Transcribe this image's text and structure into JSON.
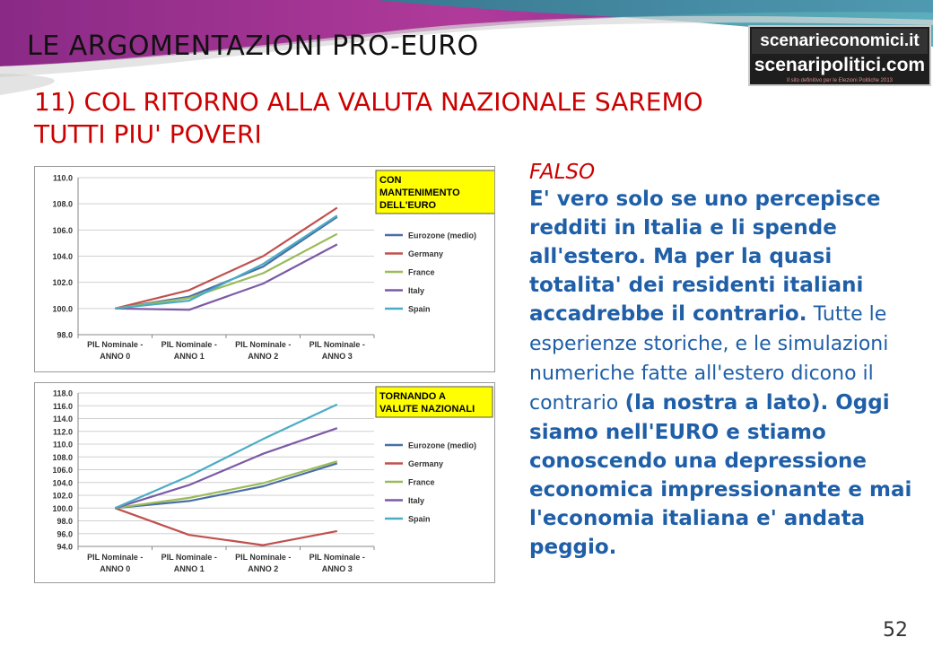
{
  "slide": {
    "title": "LE ARGOMENTAZIONI PRO-EURO",
    "subtitle_line1": "11) COL RITORNO ALLA VALUTA NAZIONALE SAREMO",
    "subtitle_line2": "TUTTI PIU' POVERI",
    "page_number": "52"
  },
  "logo": {
    "line1": "scenarieconomici.it",
    "line2": "scenaripolitici.com",
    "tagline": "Il sito definitivo per le Elezioni Politiche 2013"
  },
  "body": {
    "falso": "FALSO",
    "bold1": "E' vero solo se uno percepisce redditi in Italia e li spende all'estero. Ma per la quasi totalita' dei residenti italiani accadrebbe il contrario.",
    "plain": "Tutte le esperienze storiche, e le simulazioni numeriche fatte all'estero dicono il contrario",
    "bold2": "(la nostra a lato). Oggi siamo nell'EURO e stiamo conoscendo una depressione economica impressionante e mai l'economia italiana e' andata peggio."
  },
  "colors": {
    "banner_purple": "#9b2f8e",
    "banner_teal": "#2f8f9a",
    "title_red": "#cc0000",
    "text_blue": "#1f5fa8",
    "label_yellow": "#ffff00"
  },
  "chart_data": [
    {
      "type": "line",
      "label_box": [
        "CON",
        "MANTENIMENTO",
        "DELL'EURO"
      ],
      "categories": [
        [
          "PIL Nominale -",
          "ANNO 0"
        ],
        [
          "PIL Nominale -",
          "ANNO 1"
        ],
        [
          "PIL Nominale -",
          "ANNO 2"
        ],
        [
          "PIL Nominale -",
          "ANNO 3"
        ]
      ],
      "ylim": [
        98,
        110
      ],
      "yticks": [
        "98.0",
        "100.0",
        "102.0",
        "104.0",
        "106.0",
        "108.0",
        "110.0"
      ],
      "ytick_values": [
        98,
        100,
        102,
        104,
        106,
        108,
        110
      ],
      "grid": true,
      "legend_position": "right",
      "series": [
        {
          "name": "Eurozone (medio)",
          "color": "#4a6fa5",
          "values": [
            100,
            100.9,
            103.2,
            107.0
          ]
        },
        {
          "name": "Germany",
          "color": "#c0504d",
          "values": [
            100,
            101.4,
            104.0,
            107.7
          ]
        },
        {
          "name": "France",
          "color": "#9bbb59",
          "values": [
            100,
            100.8,
            102.7,
            105.7
          ]
        },
        {
          "name": "Italy",
          "color": "#7c5aa6",
          "values": [
            100,
            99.9,
            101.9,
            104.9
          ]
        },
        {
          "name": "Spain",
          "color": "#4bacc6",
          "values": [
            100,
            100.6,
            103.4,
            107.1
          ]
        }
      ]
    },
    {
      "type": "line",
      "label_box": [
        "TORNANDO A",
        "VALUTE NAZIONALI"
      ],
      "categories": [
        [
          "PIL Nominale -",
          "ANNO 0"
        ],
        [
          "PIL Nominale -",
          "ANNO 1"
        ],
        [
          "PIL Nominale -",
          "ANNO 2"
        ],
        [
          "PIL Nominale -",
          "ANNO 3"
        ]
      ],
      "ylim": [
        94,
        118
      ],
      "yticks": [
        "94.0",
        "96.0",
        "98.0",
        "100.0",
        "102.0",
        "104.0",
        "106.0",
        "108.0",
        "110.0",
        "112.0",
        "114.0",
        "116.0",
        "118.0"
      ],
      "ytick_values": [
        94,
        96,
        98,
        100,
        102,
        104,
        106,
        108,
        110,
        112,
        114,
        116,
        118
      ],
      "grid": true,
      "legend_position": "right",
      "series": [
        {
          "name": "Eurozone (medio)",
          "color": "#4a6fa5",
          "values": [
            100,
            101.1,
            103.4,
            107.0
          ]
        },
        {
          "name": "Germany",
          "color": "#c0504d",
          "values": [
            100,
            95.8,
            94.2,
            96.4
          ]
        },
        {
          "name": "France",
          "color": "#9bbb59",
          "values": [
            100,
            101.6,
            103.9,
            107.3
          ]
        },
        {
          "name": "Italy",
          "color": "#7c5aa6",
          "values": [
            100,
            103.6,
            108.5,
            112.5
          ]
        },
        {
          "name": "Spain",
          "color": "#4bacc6",
          "values": [
            100,
            105.0,
            110.8,
            116.2
          ]
        }
      ]
    }
  ]
}
